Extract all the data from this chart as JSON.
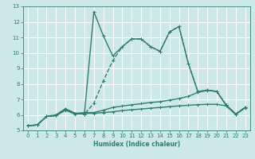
{
  "xlabel": "Humidex (Indice chaleur)",
  "background_color": "#cce8e8",
  "grid_color": "#ffffff",
  "line_color": "#2e7d6e",
  "xlim": [
    -0.5,
    23.5
  ],
  "ylim": [
    5,
    13
  ],
  "xticks": [
    0,
    1,
    2,
    3,
    4,
    5,
    6,
    7,
    8,
    9,
    10,
    11,
    12,
    13,
    14,
    15,
    16,
    17,
    18,
    19,
    20,
    21,
    22,
    23
  ],
  "yticks": [
    5,
    6,
    7,
    8,
    9,
    10,
    11,
    12,
    13
  ],
  "series": [
    {
      "x": [
        0,
        1,
        2,
        3,
        4,
        5,
        6,
        7,
        8,
        9,
        10,
        11,
        12,
        13,
        14,
        15,
        16,
        17,
        18,
        19,
        20,
        21,
        22,
        23
      ],
      "y": [
        5.3,
        5.35,
        5.9,
        5.95,
        6.3,
        6.05,
        6.1,
        6.1,
        6.15,
        6.2,
        6.28,
        6.33,
        6.38,
        6.43,
        6.48,
        6.53,
        6.58,
        6.62,
        6.66,
        6.68,
        6.68,
        6.58,
        6.02,
        6.45
      ],
      "style": "-",
      "linewidth": 1.0,
      "marker": "+"
    },
    {
      "x": [
        0,
        1,
        2,
        3,
        4,
        5,
        6,
        7,
        8,
        9,
        10,
        11,
        12,
        13,
        14,
        15,
        16,
        17,
        18,
        19,
        20,
        21,
        22,
        23
      ],
      "y": [
        5.3,
        5.35,
        5.9,
        5.95,
        6.35,
        6.1,
        6.15,
        6.15,
        6.3,
        6.48,
        6.57,
        6.65,
        6.72,
        6.8,
        6.85,
        6.95,
        7.05,
        7.2,
        7.45,
        7.58,
        7.52,
        6.62,
        6.05,
        6.48
      ],
      "style": "-",
      "linewidth": 1.0,
      "marker": "+"
    },
    {
      "x": [
        0,
        1,
        2,
        3,
        4,
        5,
        6,
        7,
        8,
        9,
        10,
        11,
        12,
        13,
        14,
        15,
        16,
        17,
        18,
        19,
        20,
        21,
        22,
        23
      ],
      "y": [
        5.3,
        5.35,
        5.9,
        6.0,
        6.4,
        6.1,
        6.05,
        6.75,
        8.2,
        9.5,
        10.4,
        10.9,
        10.9,
        10.4,
        10.1,
        11.35,
        11.7,
        9.3,
        7.5,
        7.6,
        7.5,
        6.62,
        6.05,
        6.48
      ],
      "style": "--",
      "linewidth": 1.0,
      "marker": "+"
    },
    {
      "x": [
        0,
        1,
        2,
        3,
        4,
        5,
        6,
        7,
        8,
        9,
        10,
        11,
        12,
        13,
        14,
        15,
        16,
        17,
        18,
        19,
        20,
        21,
        22,
        23
      ],
      "y": [
        5.3,
        5.35,
        5.9,
        6.0,
        6.4,
        6.1,
        6.05,
        12.65,
        11.1,
        9.8,
        10.4,
        10.9,
        10.9,
        10.4,
        10.1,
        11.35,
        11.7,
        9.3,
        7.5,
        7.6,
        7.5,
        6.62,
        6.05,
        6.48
      ],
      "style": "-",
      "linewidth": 1.0,
      "marker": "+"
    }
  ]
}
